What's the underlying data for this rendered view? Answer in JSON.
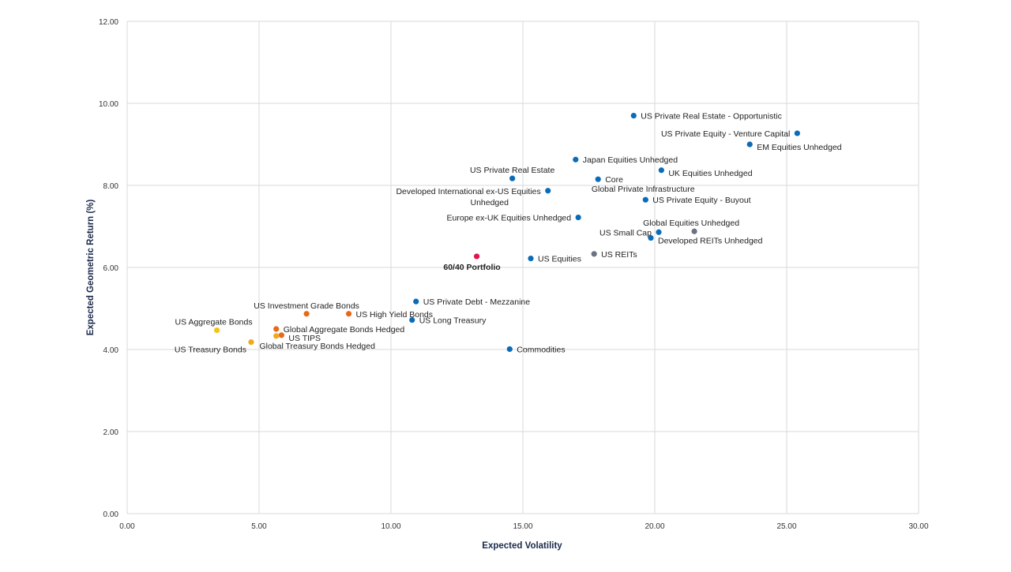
{
  "chart_data": {
    "type": "scatter",
    "title": "",
    "xlabel": "Expected Volatility",
    "ylabel": "Expected Geometric Return (%)",
    "xlim": [
      0,
      30
    ],
    "ylim": [
      0,
      12
    ],
    "x_ticks": [
      "0.00",
      "5.00",
      "10.00",
      "15.00",
      "20.00",
      "25.00",
      "30.00"
    ],
    "y_ticks": [
      "0.00",
      "2.00",
      "4.00",
      "6.00",
      "8.00",
      "10.00",
      "12.00"
    ],
    "grid": true,
    "legend": "none",
    "colors": {
      "equity": "#0a6cb8",
      "reit": "#6b7280",
      "bond": "#e8681a",
      "treasury": "#f0a81e",
      "aggregate": "#f6c31a",
      "portfolio": "#e0144c"
    },
    "points": [
      {
        "label": "US Private Real Estate - Opportunistic",
        "x": 19.2,
        "y": 9.7,
        "group": "equity",
        "label_lines": [
          "US Private Real Estate - Opportunistic"
        ],
        "label_pos": "right"
      },
      {
        "label": "US Private Equity - Venture Capital",
        "x": 25.4,
        "y": 9.27,
        "group": "equity",
        "label_lines": [
          "US Private Equity - Venture Capital"
        ],
        "label_pos": "left"
      },
      {
        "label": "EM Equities Unhedged",
        "x": 23.6,
        "y": 9.0,
        "group": "equity",
        "label_lines": [
          "EM Equities Unhedged"
        ],
        "label_pos": "right-below"
      },
      {
        "label": "Japan Equities Unhedged",
        "x": 17.0,
        "y": 8.63,
        "group": "equity",
        "label_lines": [
          "Japan Equities Unhedged"
        ],
        "label_pos": "right"
      },
      {
        "label": "UK Equities Unhedged",
        "x": 20.25,
        "y": 8.37,
        "group": "equity",
        "label_lines": [
          "UK Equities Unhedged"
        ],
        "label_pos": "right-below"
      },
      {
        "label": "US Private Real Estate",
        "x": 14.6,
        "y": 8.17,
        "group": "equity",
        "label_lines": [
          "US Private Real Estate"
        ],
        "label_pos": "above"
      },
      {
        "label": "Global Private Infrastructure Core",
        "x": 17.85,
        "y": 8.15,
        "group": "equity",
        "label_lines": [
          "Core",
          "Global Private Infrastructure"
        ],
        "label_pos": "core-below"
      },
      {
        "label": "Developed International ex-US Equities Unhedged",
        "x": 15.95,
        "y": 7.87,
        "group": "equity",
        "label_lines": [
          "Developed International ex-US Equities",
          "Unhedged"
        ],
        "label_pos": "left-two"
      },
      {
        "label": "US Private Equity - Buyout",
        "x": 19.65,
        "y": 7.65,
        "group": "equity",
        "label_lines": [
          "US Private Equity - Buyout"
        ],
        "label_pos": "right"
      },
      {
        "label": "Europe ex-UK Equities Unhedged",
        "x": 17.1,
        "y": 7.22,
        "group": "equity",
        "label_lines": [
          "Europe ex-UK Equities Unhedged"
        ],
        "label_pos": "left"
      },
      {
        "label": "Global Equities Unhedged",
        "x": 21.5,
        "y": 6.88,
        "group": "reit",
        "label_lines": [
          "Global Equities Unhedged"
        ],
        "label_pos": "above-left"
      },
      {
        "label": "US Small Cap",
        "x": 20.15,
        "y": 6.86,
        "group": "equity",
        "label_lines": [
          "US Small Cap"
        ],
        "label_pos": "left"
      },
      {
        "label": "Developed REITs Unhedged",
        "x": 19.85,
        "y": 6.72,
        "group": "equity",
        "label_lines": [
          "Developed REITs Unhedged"
        ],
        "label_pos": "right-below"
      },
      {
        "label": "US REITs",
        "x": 17.7,
        "y": 6.33,
        "group": "reit",
        "label_lines": [
          "US REITs"
        ],
        "label_pos": "right"
      },
      {
        "label": "60/40 Portfolio",
        "x": 13.25,
        "y": 6.27,
        "group": "portfolio",
        "label_lines": [
          "60/40 Portfolio"
        ],
        "label_pos": "below",
        "bold": true
      },
      {
        "label": "US Equities",
        "x": 15.3,
        "y": 6.22,
        "group": "equity",
        "label_lines": [
          "US Equities"
        ],
        "label_pos": "right"
      },
      {
        "label": "US Private Debt - Mezzanine",
        "x": 10.95,
        "y": 5.17,
        "group": "equity",
        "label_lines": [
          "US Private Debt - Mezzanine"
        ],
        "label_pos": "right"
      },
      {
        "label": "US High Yield Bonds",
        "x": 8.4,
        "y": 4.87,
        "group": "bond",
        "label_lines": [
          "US High Yield Bonds"
        ],
        "label_pos": "right"
      },
      {
        "label": "US Investment Grade Bonds",
        "x": 6.8,
        "y": 4.87,
        "group": "bond",
        "label_lines": [
          "US Investment Grade Bonds"
        ],
        "label_pos": "above"
      },
      {
        "label": "US Long Treasury",
        "x": 10.8,
        "y": 4.72,
        "group": "equity",
        "label_lines": [
          "US Long Treasury"
        ],
        "label_pos": "right"
      },
      {
        "label": "Global Aggregate Bonds Hedged",
        "x": 5.65,
        "y": 4.5,
        "group": "bond",
        "label_lines": [
          "Global Aggregate Bonds Hedged"
        ],
        "label_pos": "right"
      },
      {
        "label": "US Aggregate Bonds",
        "x": 3.4,
        "y": 4.47,
        "group": "aggregate",
        "label_lines": [
          "US Aggregate Bonds"
        ],
        "label_pos": "above-left"
      },
      {
        "label": "US TIPS",
        "x": 5.85,
        "y": 4.35,
        "group": "bond",
        "label_lines": [
          "US TIPS"
        ],
        "label_pos": "right-below"
      },
      {
        "label": "Global Treasury Bonds Hedged",
        "x": 5.65,
        "y": 4.33,
        "group": "treasury",
        "label_lines": [],
        "label_pos": "none"
      },
      {
        "label": "US Treasury Bonds",
        "x": 4.7,
        "y": 4.18,
        "group": "treasury",
        "label_lines": [
          "US Treasury Bonds"
        ],
        "label_pos": "left-below"
      },
      {
        "label": "Global Treasury Bonds Hedged (label)",
        "x": 5.65,
        "y": 4.33,
        "group": "none",
        "label_lines": [
          "Global Treasury Bonds Hedged"
        ],
        "label_pos": "gtb"
      },
      {
        "label": "Commodities",
        "x": 14.5,
        "y": 4.01,
        "group": "equity",
        "label_lines": [
          "Commodities"
        ],
        "label_pos": "right"
      }
    ]
  }
}
